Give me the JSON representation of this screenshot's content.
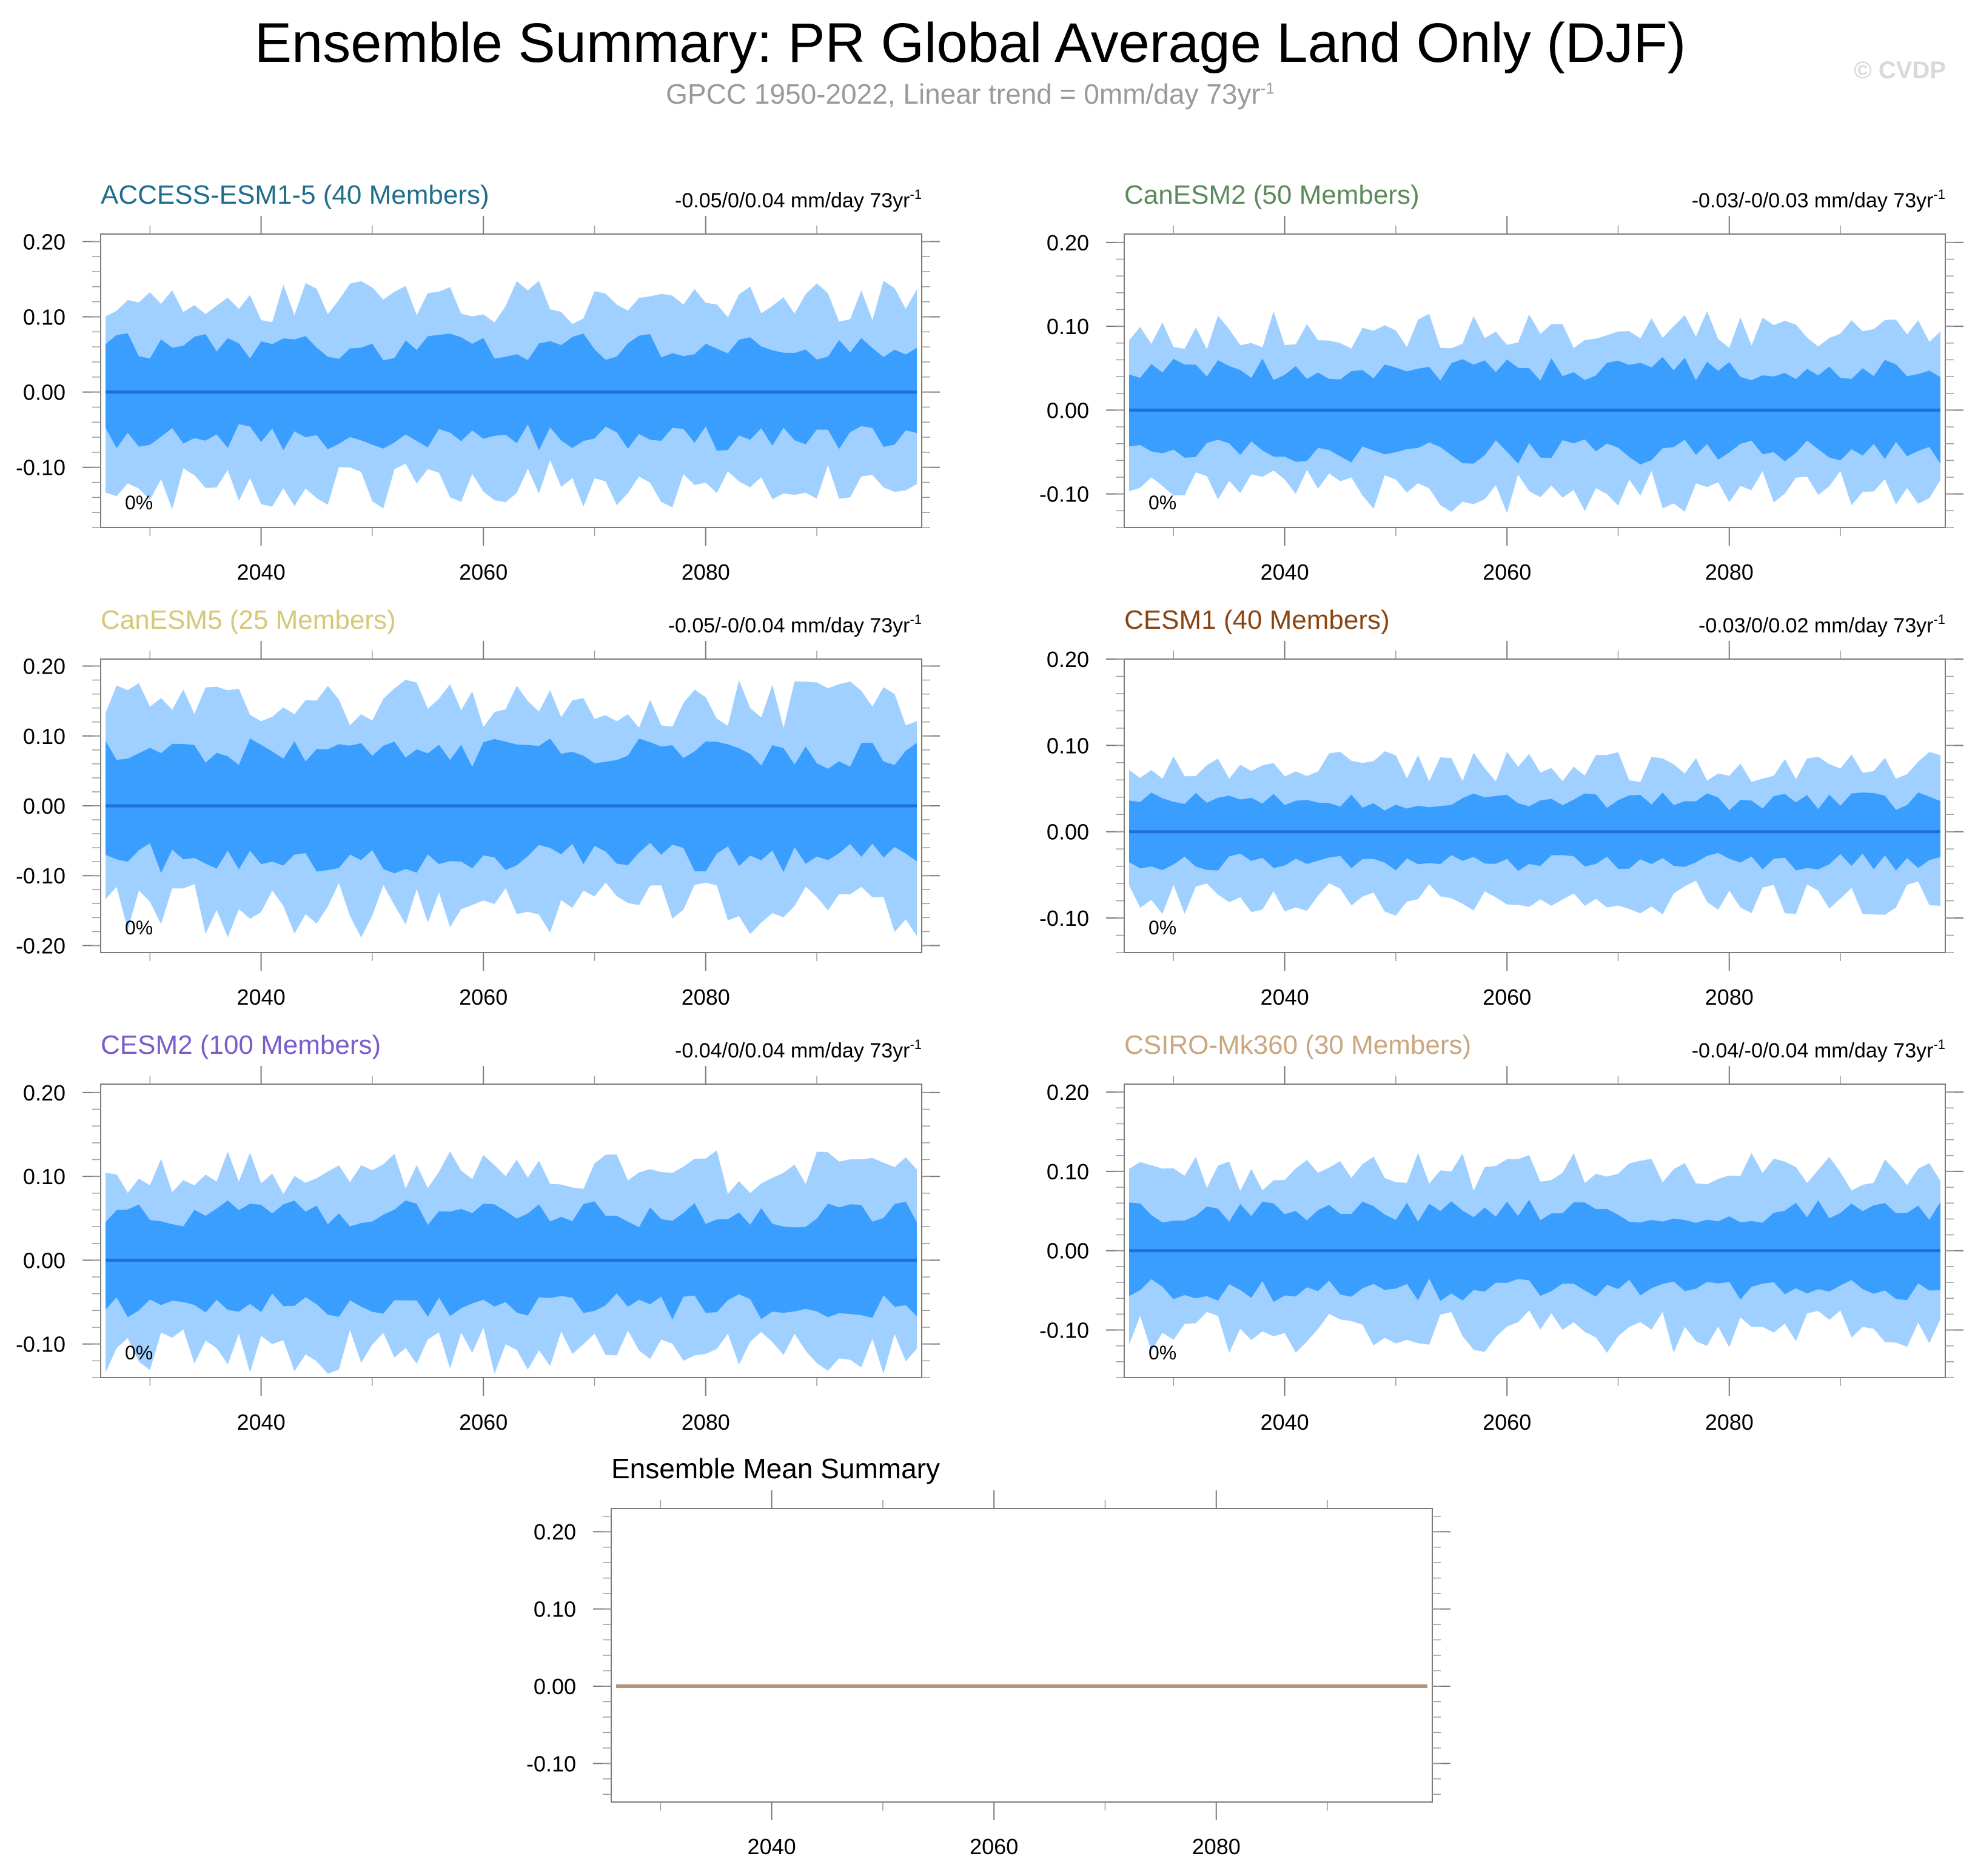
{
  "header": {
    "title": "Ensemble Summary: PR Global Average Land Only (DJF)",
    "subtitle_main": "GPCC 1950-2022, Linear trend = 0mm/day 73yr",
    "subtitle_exp": "-1",
    "watermark": "© CVDP"
  },
  "chart_data": [
    {
      "type": "area",
      "title": "ACCESS-ESM1-5 (40 Members)",
      "title_color": "#1f6e8c",
      "trend_text": "-0.05/0/0.04 mm/day 73yr",
      "trend_exp": "-1",
      "corner_label": "0%",
      "x_range": [
        2026,
        2099
      ],
      "ylim": [
        -0.18,
        0.21
      ],
      "yticks": [
        -0.1,
        0.0,
        0.1,
        0.2
      ],
      "ytick_labels": [
        "-0.10",
        "0.00",
        "0.10",
        "0.20"
      ],
      "xticks": [
        2040,
        2060,
        2080
      ],
      "xtick_labels": [
        "2040",
        "2060",
        "2080"
      ],
      "mean_line": 0.0,
      "outer_amp": 0.12,
      "inner_amp": 0.06,
      "seed": 1,
      "colors": {
        "outer": "#a0d0ff",
        "inner": "#3a9eff",
        "line": "#1e6fd9"
      }
    },
    {
      "type": "area",
      "title": "CanESM2 (50 Members)",
      "title_color": "#5b8a5b",
      "trend_text": "-0.03/-0/0.03 mm/day 73yr",
      "trend_exp": "-1",
      "corner_label": "0%",
      "x_range": [
        2026,
        2099
      ],
      "ylim": [
        -0.14,
        0.21
      ],
      "yticks": [
        -0.1,
        0.0,
        0.1,
        0.2
      ],
      "ytick_labels": [
        "-0.10",
        "0.00",
        "0.10",
        "0.20"
      ],
      "xticks": [
        2040,
        2060,
        2080
      ],
      "xtick_labels": [
        "2040",
        "2060",
        "2080"
      ],
      "mean_line": 0.0,
      "outer_amp": 0.095,
      "inner_amp": 0.05,
      "seed": 2,
      "colors": {
        "outer": "#a0d0ff",
        "inner": "#3a9eff",
        "line": "#1e6fd9"
      }
    },
    {
      "type": "area",
      "title": "CanESM5 (25 Members)",
      "title_color": "#d6c878",
      "trend_text": "-0.05/-0/0.04 mm/day 73yr",
      "trend_exp": "-1",
      "corner_label": "0%",
      "x_range": [
        2026,
        2099
      ],
      "ylim": [
        -0.21,
        0.21
      ],
      "yticks": [
        -0.2,
        -0.1,
        0.0,
        0.1,
        0.2
      ],
      "ytick_labels": [
        "-0.20",
        "-0.10",
        "0.00",
        "0.10",
        "0.20"
      ],
      "xticks": [
        2040,
        2060,
        2080
      ],
      "xtick_labels": [
        "2040",
        "2060",
        "2080"
      ],
      "mean_line": 0.0,
      "outer_amp": 0.145,
      "inner_amp": 0.075,
      "seed": 3,
      "colors": {
        "outer": "#a0d0ff",
        "inner": "#3a9eff",
        "line": "#1e6fd9"
      }
    },
    {
      "type": "area",
      "title": "CESM1 (40 Members)",
      "title_color": "#8b4513",
      "trend_text": "-0.03/0/0.02 mm/day 73yr",
      "trend_exp": "-1",
      "corner_label": "0%",
      "x_range": [
        2026,
        2099
      ],
      "ylim": [
        -0.14,
        0.2
      ],
      "yticks": [
        -0.1,
        0.0,
        0.1,
        0.2
      ],
      "ytick_labels": [
        "-0.10",
        "0.00",
        "0.10",
        "0.20"
      ],
      "xticks": [
        2040,
        2060,
        2080
      ],
      "xtick_labels": [
        "2040",
        "2060",
        "2080"
      ],
      "mean_line": 0.0,
      "outer_amp": 0.075,
      "inner_amp": 0.035,
      "seed": 4,
      "colors": {
        "outer": "#a0d0ff",
        "inner": "#3a9eff",
        "line": "#1e6fd9"
      }
    },
    {
      "type": "area",
      "title": "CESM2 (100 Members)",
      "title_color": "#7b5cc8",
      "trend_text": "-0.04/0/0.04 mm/day 73yr",
      "trend_exp": "-1",
      "corner_label": "0%",
      "x_range": [
        2026,
        2099
      ],
      "ylim": [
        -0.14,
        0.21
      ],
      "yticks": [
        -0.1,
        0.0,
        0.1,
        0.2
      ],
      "ytick_labels": [
        "-0.10",
        "0.00",
        "0.10",
        "0.20"
      ],
      "xticks": [
        2040,
        2060,
        2080
      ],
      "xtick_labels": [
        "2040",
        "2060",
        "2080"
      ],
      "mean_line": 0.0,
      "outer_amp": 0.105,
      "inner_amp": 0.055,
      "seed": 5,
      "colors": {
        "outer": "#a0d0ff",
        "inner": "#3a9eff",
        "line": "#1e6fd9"
      }
    },
    {
      "type": "area",
      "title": "CSIRO-Mk360 (30 Members)",
      "title_color": "#c9a880",
      "trend_text": "-0.04/-0/0.04 mm/day 73yr",
      "trend_exp": "-1",
      "corner_label": "0%",
      "x_range": [
        2026,
        2099
      ],
      "ylim": [
        -0.16,
        0.21
      ],
      "yticks": [
        -0.1,
        0.0,
        0.1,
        0.2
      ],
      "ytick_labels": [
        "-0.10",
        "0.00",
        "0.10",
        "0.20"
      ],
      "xticks": [
        2040,
        2060,
        2080
      ],
      "xtick_labels": [
        "2040",
        "2060",
        "2080"
      ],
      "mean_line": 0.0,
      "outer_amp": 0.1,
      "inner_amp": 0.05,
      "seed": 6,
      "colors": {
        "outer": "#a0d0ff",
        "inner": "#3a9eff",
        "line": "#1e6fd9"
      }
    },
    {
      "type": "line",
      "title": "Ensemble Mean Summary",
      "title_color": "#000000",
      "x_range": [
        2026,
        2099
      ],
      "ylim": [
        -0.15,
        0.23
      ],
      "yticks": [
        -0.1,
        0.0,
        0.1,
        0.2
      ],
      "ytick_labels": [
        "-0.10",
        "0.00",
        "0.10",
        "0.20"
      ],
      "xticks": [
        2040,
        2060,
        2080
      ],
      "xtick_labels": [
        "2040",
        "2060",
        "2080"
      ],
      "series": [
        {
          "name": "ensemble mean",
          "x": [
            2026,
            2099
          ],
          "values": [
            0.0,
            0.0
          ],
          "color": "#b5957a"
        }
      ]
    }
  ]
}
